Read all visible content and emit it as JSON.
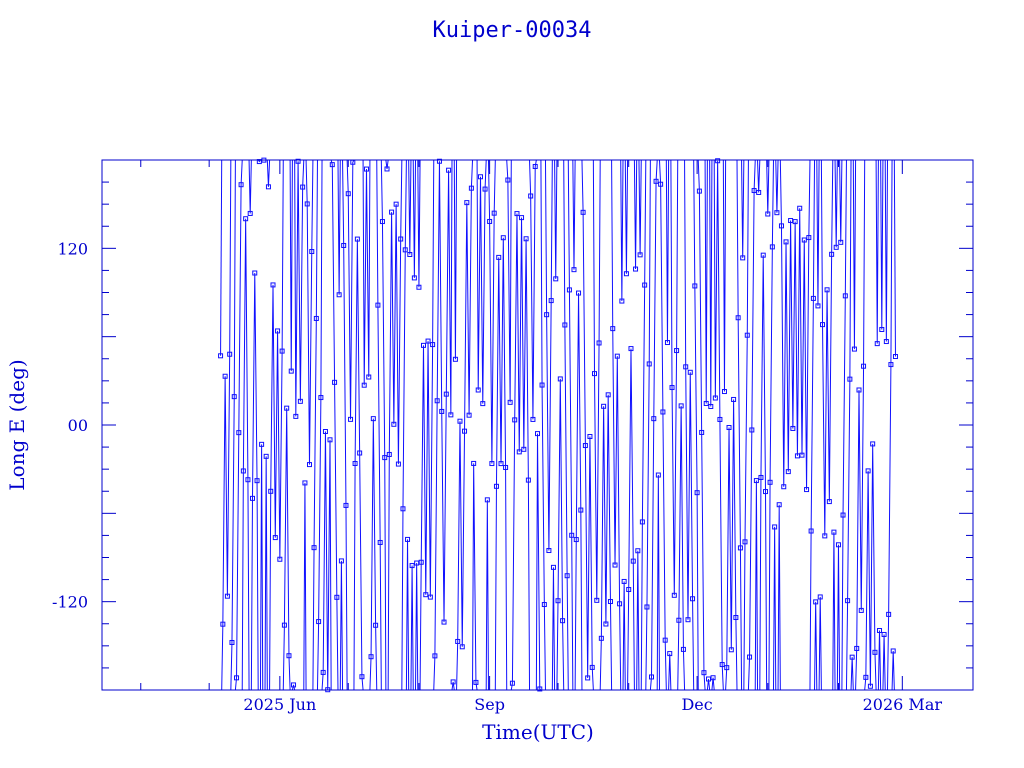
{
  "chart_data": {
    "type": "line",
    "title": "Kuiper-00034",
    "xlabel": "Time(UTC)",
    "ylabel": "Long E (deg)",
    "x_ticks": [
      "2025 Jun",
      "Sep",
      "Dec",
      "2026 Mar"
    ],
    "x_tick_dates": [
      "2025-06-01",
      "2025-09-01",
      "2025-12-01",
      "2026-03-01"
    ],
    "xlim": [
      "2025-03-15",
      "2026-04-01"
    ],
    "y_ticks": [
      "120",
      "00",
      "-120"
    ],
    "y_tick_values": [
      120,
      0,
      -120
    ],
    "ylim": [
      -180,
      180
    ],
    "data_range": [
      "2025-05-06",
      "2026-02-26"
    ],
    "grid": false,
    "marker": "square",
    "colors": {
      "series": "#1010ff",
      "axes": "#0000cc",
      "background": "#ffffff"
    }
  }
}
